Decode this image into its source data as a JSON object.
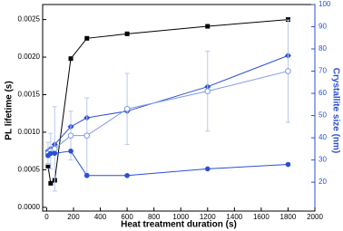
{
  "chart_data": {
    "type": "line",
    "xlabel": "Heat treatment duration (s)",
    "ylabel": "PL lifetime (s)",
    "y2label": "Crystallite size (nm)",
    "xlim": [
      -30,
      2000
    ],
    "xticks": [
      0,
      200,
      400,
      600,
      800,
      1000,
      1200,
      1400,
      1600,
      1800,
      2000
    ],
    "ylim": [
      -5e-05,
      0.0027
    ],
    "yticks": [
      {
        "value": 0,
        "label": "0.0000"
      },
      0.0005,
      {
        "value": 0.001,
        "label": "0.0010"
      },
      0.0015,
      {
        "value": 0.002,
        "label": "0.0020"
      },
      0.0025
    ],
    "y2lim": [
      7,
      100
    ],
    "y2ticks": [
      20,
      30,
      40,
      50,
      60,
      70,
      80,
      90,
      100
    ],
    "x": [
      10,
      30,
      60,
      180,
      300,
      600,
      1200,
      1800
    ],
    "series": [
      {
        "color": "#000000",
        "marker": "square",
        "values": [
          0.00055,
          0.00032,
          0.00036,
          0.00198,
          0.00225,
          0.00231,
          0.00241,
          0.0025
        ]
      },
      {
        "color": "#2a4fd6",
        "marker": "diamond",
        "axis": "y2",
        "values": [
          34,
          35,
          37,
          45,
          49,
          52,
          63,
          77
        ]
      },
      {
        "color": "#7e9ae6",
        "marker": "open-circle",
        "axis": "y2",
        "values": [
          33,
          34,
          35,
          41,
          41,
          53,
          61,
          70
        ],
        "errors": [
          5,
          8,
          19,
          11,
          17,
          16,
          18,
          23
        ]
      },
      {
        "color": "#2a4fd6",
        "marker": "circle",
        "axis": "y2",
        "values": [
          32,
          33,
          33,
          34,
          23,
          23,
          26,
          28
        ]
      }
    ]
  }
}
